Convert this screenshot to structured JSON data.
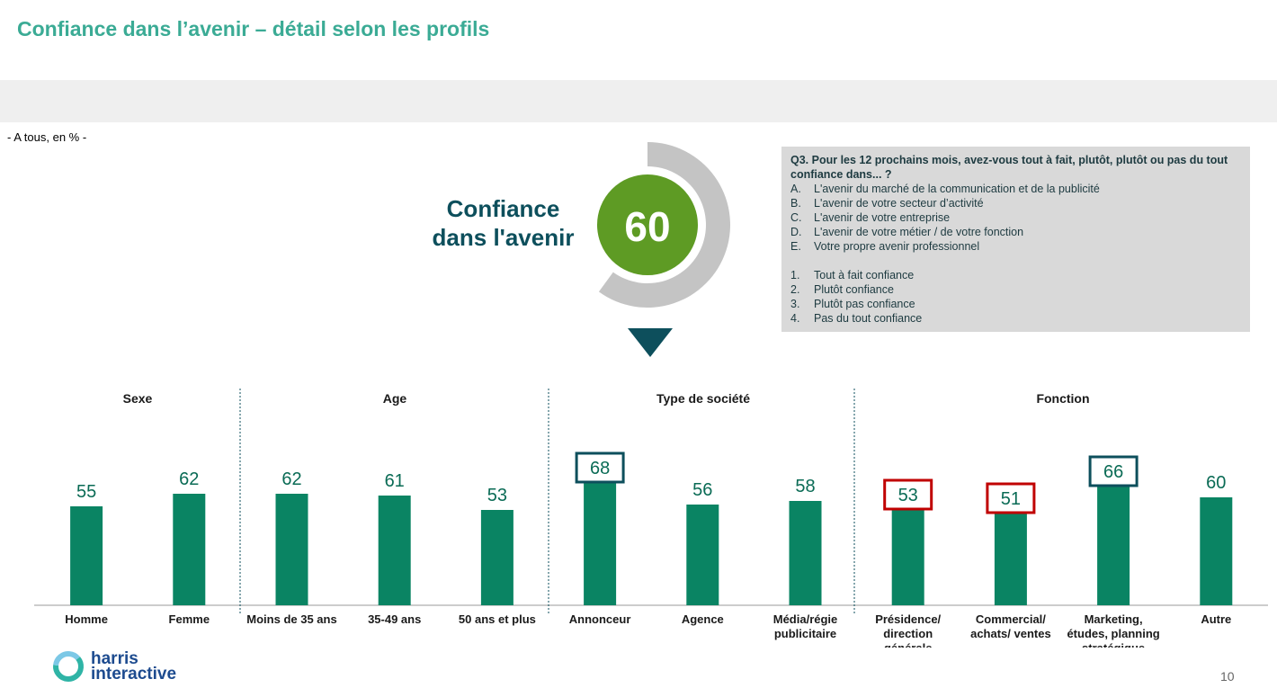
{
  "page": {
    "title": "Confiance dans l’avenir – détail selon les profils",
    "base_note": "- A tous, en % -",
    "page_number": "10"
  },
  "donut": {
    "label_line1": "Confiance",
    "label_line2": "dans l'avenir",
    "value": 60,
    "value_label": "60",
    "center_color": "#5e9b24",
    "ring_color": "#c4c4c4"
  },
  "question": {
    "text": "Q3. Pour les 12 prochains mois, avez-vous tout à fait, plutôt, plutôt ou pas du tout confiance dans... ?",
    "items": [
      {
        "key": "A.",
        "label": "L'avenir du marché de la communication et de la publicité"
      },
      {
        "key": "B.",
        "label": "L'avenir de votre secteur d’activité"
      },
      {
        "key": "C.",
        "label": "L'avenir de votre entreprise"
      },
      {
        "key": "D.",
        "label": "L'avenir de votre métier / de votre fonction"
      },
      {
        "key": "E.",
        "label": "Votre propre avenir professionnel"
      }
    ],
    "scale": [
      {
        "key": "1.",
        "label": "Tout à fait confiance"
      },
      {
        "key": "2.",
        "label": "Plutôt confiance"
      },
      {
        "key": "3.",
        "label": "Plutôt pas confiance"
      },
      {
        "key": "4.",
        "label": "Pas du tout confiance"
      }
    ]
  },
  "chart_data": {
    "type": "bar",
    "bar_color": "#0a8463",
    "groups": [
      {
        "name": "Sexe",
        "categories": [
          {
            "label": "Homme",
            "value": 55,
            "highlight": ""
          },
          {
            "label": "Femme",
            "value": 62,
            "highlight": ""
          }
        ]
      },
      {
        "name": "Age",
        "categories": [
          {
            "label": "Moins de 35 ans",
            "value": 62,
            "highlight": ""
          },
          {
            "label": "35-49 ans",
            "value": 61,
            "highlight": ""
          },
          {
            "label": "50 ans et plus",
            "value": 53,
            "highlight": ""
          }
        ]
      },
      {
        "name": "Type de société",
        "categories": [
          {
            "label": "Annonceur",
            "value": 68,
            "highlight": "higher"
          },
          {
            "label": "Agence",
            "value": 56,
            "highlight": ""
          },
          {
            "label": "Média/régie publicitaire",
            "value": 58,
            "highlight": ""
          }
        ]
      },
      {
        "name": "Fonction",
        "categories": [
          {
            "label": "Présidence/ direction générale",
            "value": 53,
            "highlight": "lower"
          },
          {
            "label": "Commercial/ achats/ ventes",
            "value": 51,
            "highlight": "lower"
          },
          {
            "label": "Marketing, études, planning stratégique",
            "value": 66,
            "highlight": "higher"
          },
          {
            "label": "Autre",
            "value": 60,
            "highlight": ""
          }
        ]
      }
    ],
    "highlight_colors": {
      "higher": "#0d4f5c",
      "lower": "#c00000"
    }
  },
  "logo": {
    "line1": "harris",
    "line2": "interactive"
  }
}
